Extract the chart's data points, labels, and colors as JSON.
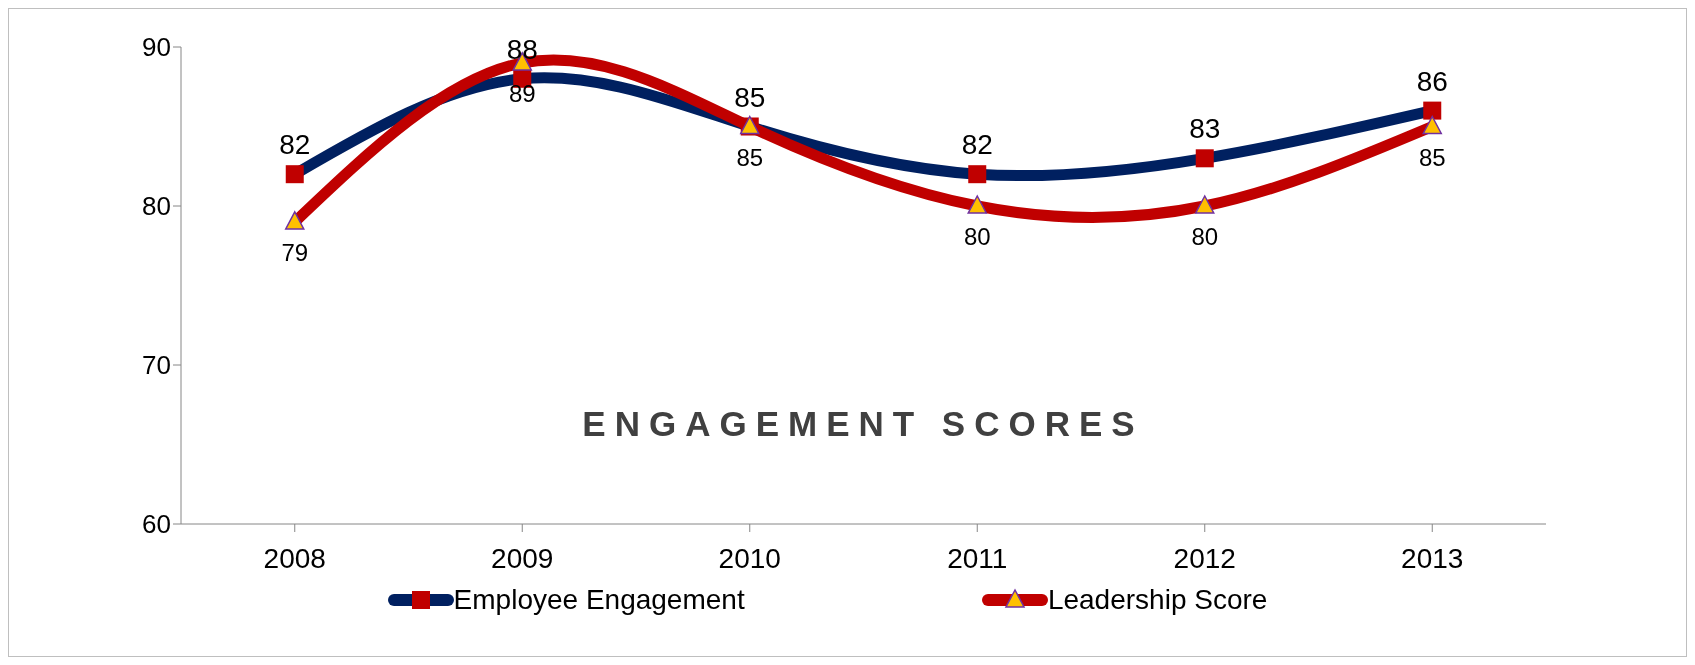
{
  "chart_data": {
    "type": "line",
    "title": "ENGAGEMENT SCORES",
    "categories": [
      "2008",
      "2009",
      "2010",
      "2011",
      "2012",
      "2013"
    ],
    "series": [
      {
        "name": "Employee Engagement",
        "color": "#002060",
        "marker": "square",
        "colors": [
          "#c00000",
          "#c00000",
          "#c00000",
          "#c00000",
          "#c00000",
          "#c00000"
        ],
        "values": [
          82,
          88,
          85,
          82,
          83,
          86
        ]
      },
      {
        "name": "Leadership Score",
        "color": "#c00000",
        "marker": "triangle",
        "colors": [
          "#ffc000",
          "#ffc000",
          "#ffc000",
          "#ffc000",
          "#ffc000",
          "#ffc000"
        ],
        "values": [
          79,
          89,
          85,
          80,
          80,
          85
        ]
      }
    ],
    "ylim": [
      60,
      90
    ],
    "yticks": [
      60,
      70,
      80,
      90
    ],
    "legend": "bottom",
    "data_labels": true
  }
}
